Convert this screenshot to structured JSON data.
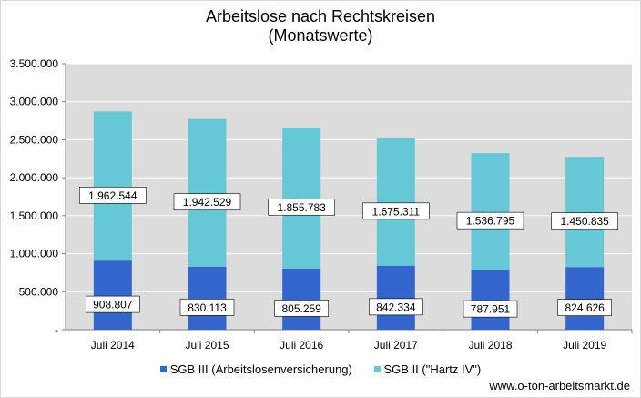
{
  "chart_data": {
    "type": "bar",
    "stacked": true,
    "title": "Arbeitslose nach Rechtskreisen",
    "subtitle": "(Monatswerte)",
    "categories": [
      "Juli 2014",
      "Juli 2015",
      "Juli 2016",
      "Juli 2017",
      "Juli 2018",
      "Juli 2019"
    ],
    "series": [
      {
        "name": "SGB III (Arbeitslosenversicherung)",
        "color": "#3366cc",
        "values": [
          908807,
          830113,
          805259,
          842334,
          787951,
          824626
        ],
        "labels": [
          "908.807",
          "830.113",
          "805.259",
          "842.334",
          "787.951",
          "824.626"
        ]
      },
      {
        "name": "SGB II (\"Hartz IV\")",
        "color": "#66c8d6",
        "values": [
          1962544,
          1942529,
          1855783,
          1675311,
          1536795,
          1450835
        ],
        "labels": [
          "1.962.544",
          "1.942.529",
          "1.855.783",
          "1.675.311",
          "1.536.795",
          "1.450.835"
        ]
      }
    ],
    "ylim": [
      0,
      3500000
    ],
    "yticks": [
      {
        "value": 0,
        "label": "-"
      },
      {
        "value": 500000,
        "label": "500.000"
      },
      {
        "value": 1000000,
        "label": "1.000.000"
      },
      {
        "value": 1500000,
        "label": "1.500.000"
      },
      {
        "value": 2000000,
        "label": "2.000.000"
      },
      {
        "value": 2500000,
        "label": "2.500.000"
      },
      {
        "value": 3000000,
        "label": "3.000.000"
      },
      {
        "value": 3500000,
        "label": "3.500.000"
      }
    ],
    "grid": true,
    "legend_position": "bottom",
    "plot_background": "#dcdcdc",
    "gridline_color": "#ffffff"
  },
  "source": "www.o-ton-arbeitsmarkt.de"
}
